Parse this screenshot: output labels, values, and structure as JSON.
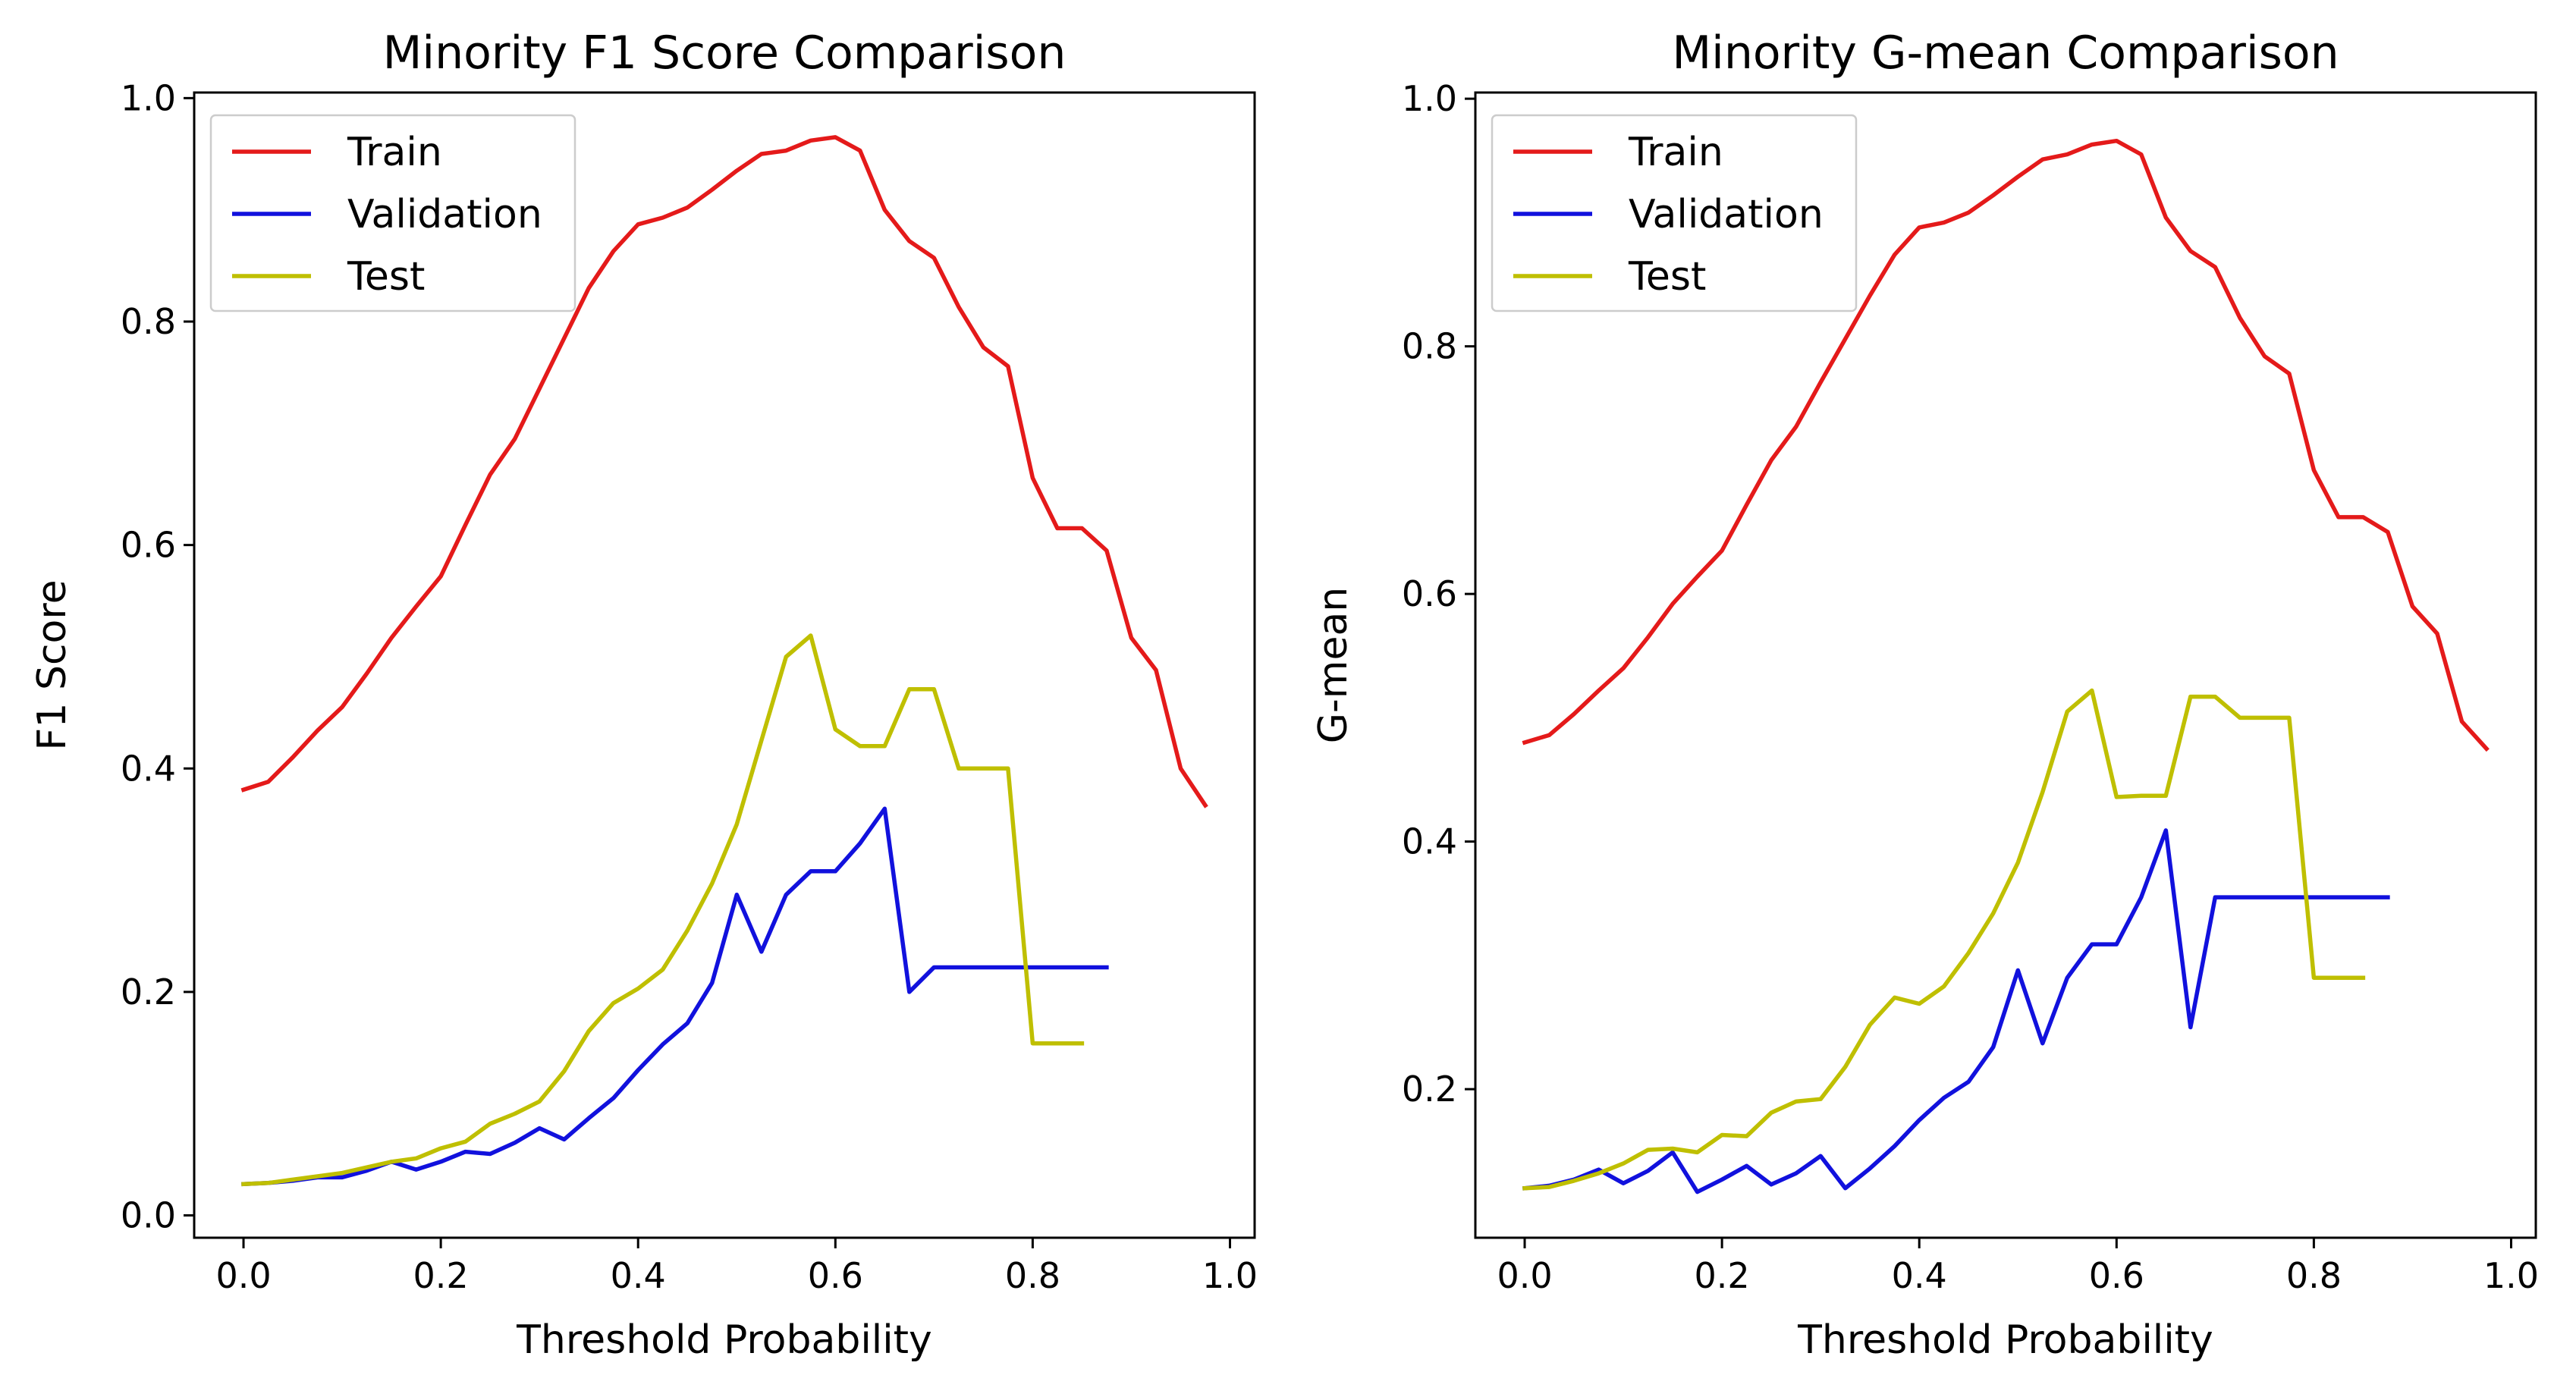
{
  "chart_data": [
    {
      "type": "line",
      "title": "Minority F1 Score Comparison",
      "xlabel": "Threshold Probability",
      "ylabel": "F1 Score",
      "xlim": [
        -0.05,
        1.025
      ],
      "ylim": [
        -0.02,
        1.005
      ],
      "xticks": [
        "0.0",
        "0.2",
        "0.4",
        "0.6",
        "0.8",
        "1.0"
      ],
      "yticks": [
        "0.0",
        "0.2",
        "0.4",
        "0.6",
        "0.8",
        "1.0"
      ],
      "grid": false,
      "legend_position": "top-left",
      "series": [
        {
          "name": "Train",
          "color": "#e41a1a",
          "x": [
            0.0,
            0.025,
            0.05,
            0.075,
            0.1,
            0.125,
            0.15,
            0.175,
            0.2,
            0.225,
            0.25,
            0.275,
            0.3,
            0.325,
            0.35,
            0.375,
            0.4,
            0.425,
            0.45,
            0.475,
            0.5,
            0.525,
            0.55,
            0.575,
            0.6,
            0.625,
            0.65,
            0.675,
            0.7,
            0.725,
            0.75,
            0.775,
            0.8,
            0.825,
            0.85,
            0.875,
            0.9,
            0.925,
            0.95,
            0.975
          ],
          "values": [
            0.381,
            0.388,
            0.41,
            0.434,
            0.455,
            0.485,
            0.517,
            0.545,
            0.572,
            0.618,
            0.663,
            0.695,
            0.74,
            0.785,
            0.83,
            0.863,
            0.887,
            0.893,
            0.902,
            0.918,
            0.935,
            0.95,
            0.953,
            0.962,
            0.965,
            0.953,
            0.9,
            0.872,
            0.857,
            0.813,
            0.777,
            0.76,
            0.66,
            0.615,
            0.615,
            0.595,
            0.517,
            0.488,
            0.4,
            0.367
          ]
        },
        {
          "name": "Validation",
          "color": "#1111dd",
          "x": [
            0.0,
            0.025,
            0.05,
            0.075,
            0.1,
            0.125,
            0.15,
            0.175,
            0.2,
            0.225,
            0.25,
            0.275,
            0.3,
            0.325,
            0.35,
            0.375,
            0.4,
            0.425,
            0.45,
            0.475,
            0.5,
            0.525,
            0.55,
            0.575,
            0.6,
            0.625,
            0.65,
            0.675,
            0.7,
            0.725,
            0.75,
            0.775,
            0.8,
            0.825,
            0.85,
            0.875
          ],
          "values": [
            0.028,
            0.029,
            0.031,
            0.034,
            0.034,
            0.04,
            0.048,
            0.041,
            0.048,
            0.057,
            0.055,
            0.065,
            0.078,
            0.068,
            0.087,
            0.105,
            0.13,
            0.153,
            0.172,
            0.208,
            0.287,
            0.236,
            0.287,
            0.308,
            0.308,
            0.333,
            0.364,
            0.2,
            0.222,
            0.222,
            0.222,
            0.222,
            0.222,
            0.222,
            0.222,
            0.222
          ]
        },
        {
          "name": "Test",
          "color": "#bfbf00",
          "x": [
            0.0,
            0.025,
            0.05,
            0.075,
            0.1,
            0.125,
            0.15,
            0.175,
            0.2,
            0.225,
            0.25,
            0.275,
            0.3,
            0.325,
            0.35,
            0.375,
            0.4,
            0.425,
            0.45,
            0.475,
            0.5,
            0.525,
            0.55,
            0.575,
            0.6,
            0.625,
            0.65,
            0.675,
            0.7,
            0.725,
            0.75,
            0.775,
            0.8,
            0.825,
            0.85
          ],
          "values": [
            0.028,
            0.029,
            0.032,
            0.035,
            0.038,
            0.043,
            0.048,
            0.051,
            0.06,
            0.066,
            0.082,
            0.091,
            0.102,
            0.129,
            0.165,
            0.19,
            0.203,
            0.22,
            0.255,
            0.297,
            0.35,
            0.425,
            0.5,
            0.519,
            0.435,
            0.42,
            0.42,
            0.471,
            0.471,
            0.4,
            0.4,
            0.4,
            0.154,
            0.154,
            0.154
          ]
        }
      ]
    },
    {
      "type": "line",
      "title": "Minority G-mean Comparison",
      "xlabel": "Threshold Probability",
      "ylabel": "G-mean",
      "xlim": [
        -0.05,
        1.025
      ],
      "ylim": [
        0.08,
        1.005
      ],
      "xticks": [
        "0.0",
        "0.2",
        "0.4",
        "0.6",
        "0.8",
        "1.0"
      ],
      "yticks": [
        "0.2",
        "0.4",
        "0.6",
        "0.8",
        "1.0"
      ],
      "grid": false,
      "legend_position": "top-left",
      "series": [
        {
          "name": "Train",
          "color": "#e41a1a",
          "x": [
            0.0,
            0.025,
            0.05,
            0.075,
            0.1,
            0.125,
            0.15,
            0.175,
            0.2,
            0.225,
            0.25,
            0.275,
            0.3,
            0.325,
            0.35,
            0.375,
            0.4,
            0.425,
            0.45,
            0.475,
            0.5,
            0.525,
            0.55,
            0.575,
            0.6,
            0.625,
            0.65,
            0.675,
            0.7,
            0.725,
            0.75,
            0.775,
            0.8,
            0.825,
            0.85,
            0.875,
            0.9,
            0.925,
            0.95,
            0.975
          ],
          "values": [
            0.48,
            0.486,
            0.503,
            0.522,
            0.54,
            0.565,
            0.592,
            0.614,
            0.635,
            0.672,
            0.708,
            0.735,
            0.771,
            0.806,
            0.841,
            0.874,
            0.896,
            0.9,
            0.908,
            0.922,
            0.937,
            0.951,
            0.955,
            0.963,
            0.966,
            0.955,
            0.904,
            0.877,
            0.864,
            0.823,
            0.792,
            0.778,
            0.7,
            0.662,
            0.662,
            0.65,
            0.59,
            0.568,
            0.497,
            0.475
          ]
        },
        {
          "name": "Validation",
          "color": "#1111dd",
          "x": [
            0.0,
            0.025,
            0.05,
            0.075,
            0.1,
            0.125,
            0.15,
            0.175,
            0.2,
            0.225,
            0.25,
            0.275,
            0.3,
            0.325,
            0.35,
            0.375,
            0.4,
            0.425,
            0.45,
            0.475,
            0.5,
            0.525,
            0.55,
            0.575,
            0.6,
            0.625,
            0.65,
            0.675,
            0.7,
            0.725,
            0.75,
            0.775,
            0.8,
            0.825,
            0.85,
            0.875
          ],
          "values": [
            0.12,
            0.122,
            0.127,
            0.135,
            0.124,
            0.134,
            0.149,
            0.117,
            0.127,
            0.138,
            0.123,
            0.132,
            0.146,
            0.12,
            0.136,
            0.154,
            0.175,
            0.193,
            0.206,
            0.234,
            0.296,
            0.237,
            0.29,
            0.317,
            0.317,
            0.355,
            0.409,
            0.25,
            0.355,
            0.355,
            0.355,
            0.355,
            0.355,
            0.355,
            0.355,
            0.355
          ]
        },
        {
          "name": "Test",
          "color": "#bfbf00",
          "x": [
            0.0,
            0.025,
            0.05,
            0.075,
            0.1,
            0.125,
            0.15,
            0.175,
            0.2,
            0.225,
            0.25,
            0.275,
            0.3,
            0.325,
            0.35,
            0.375,
            0.4,
            0.425,
            0.45,
            0.475,
            0.5,
            0.525,
            0.55,
            0.575,
            0.6,
            0.625,
            0.65,
            0.675,
            0.7,
            0.725,
            0.75,
            0.775,
            0.8,
            0.825,
            0.85
          ],
          "values": [
            0.12,
            0.121,
            0.126,
            0.132,
            0.14,
            0.151,
            0.152,
            0.149,
            0.163,
            0.162,
            0.181,
            0.19,
            0.192,
            0.218,
            0.252,
            0.274,
            0.269,
            0.283,
            0.31,
            0.342,
            0.383,
            0.44,
            0.505,
            0.522,
            0.436,
            0.437,
            0.437,
            0.517,
            0.517,
            0.5,
            0.5,
            0.5,
            0.29,
            0.29,
            0.29
          ]
        }
      ]
    }
  ]
}
